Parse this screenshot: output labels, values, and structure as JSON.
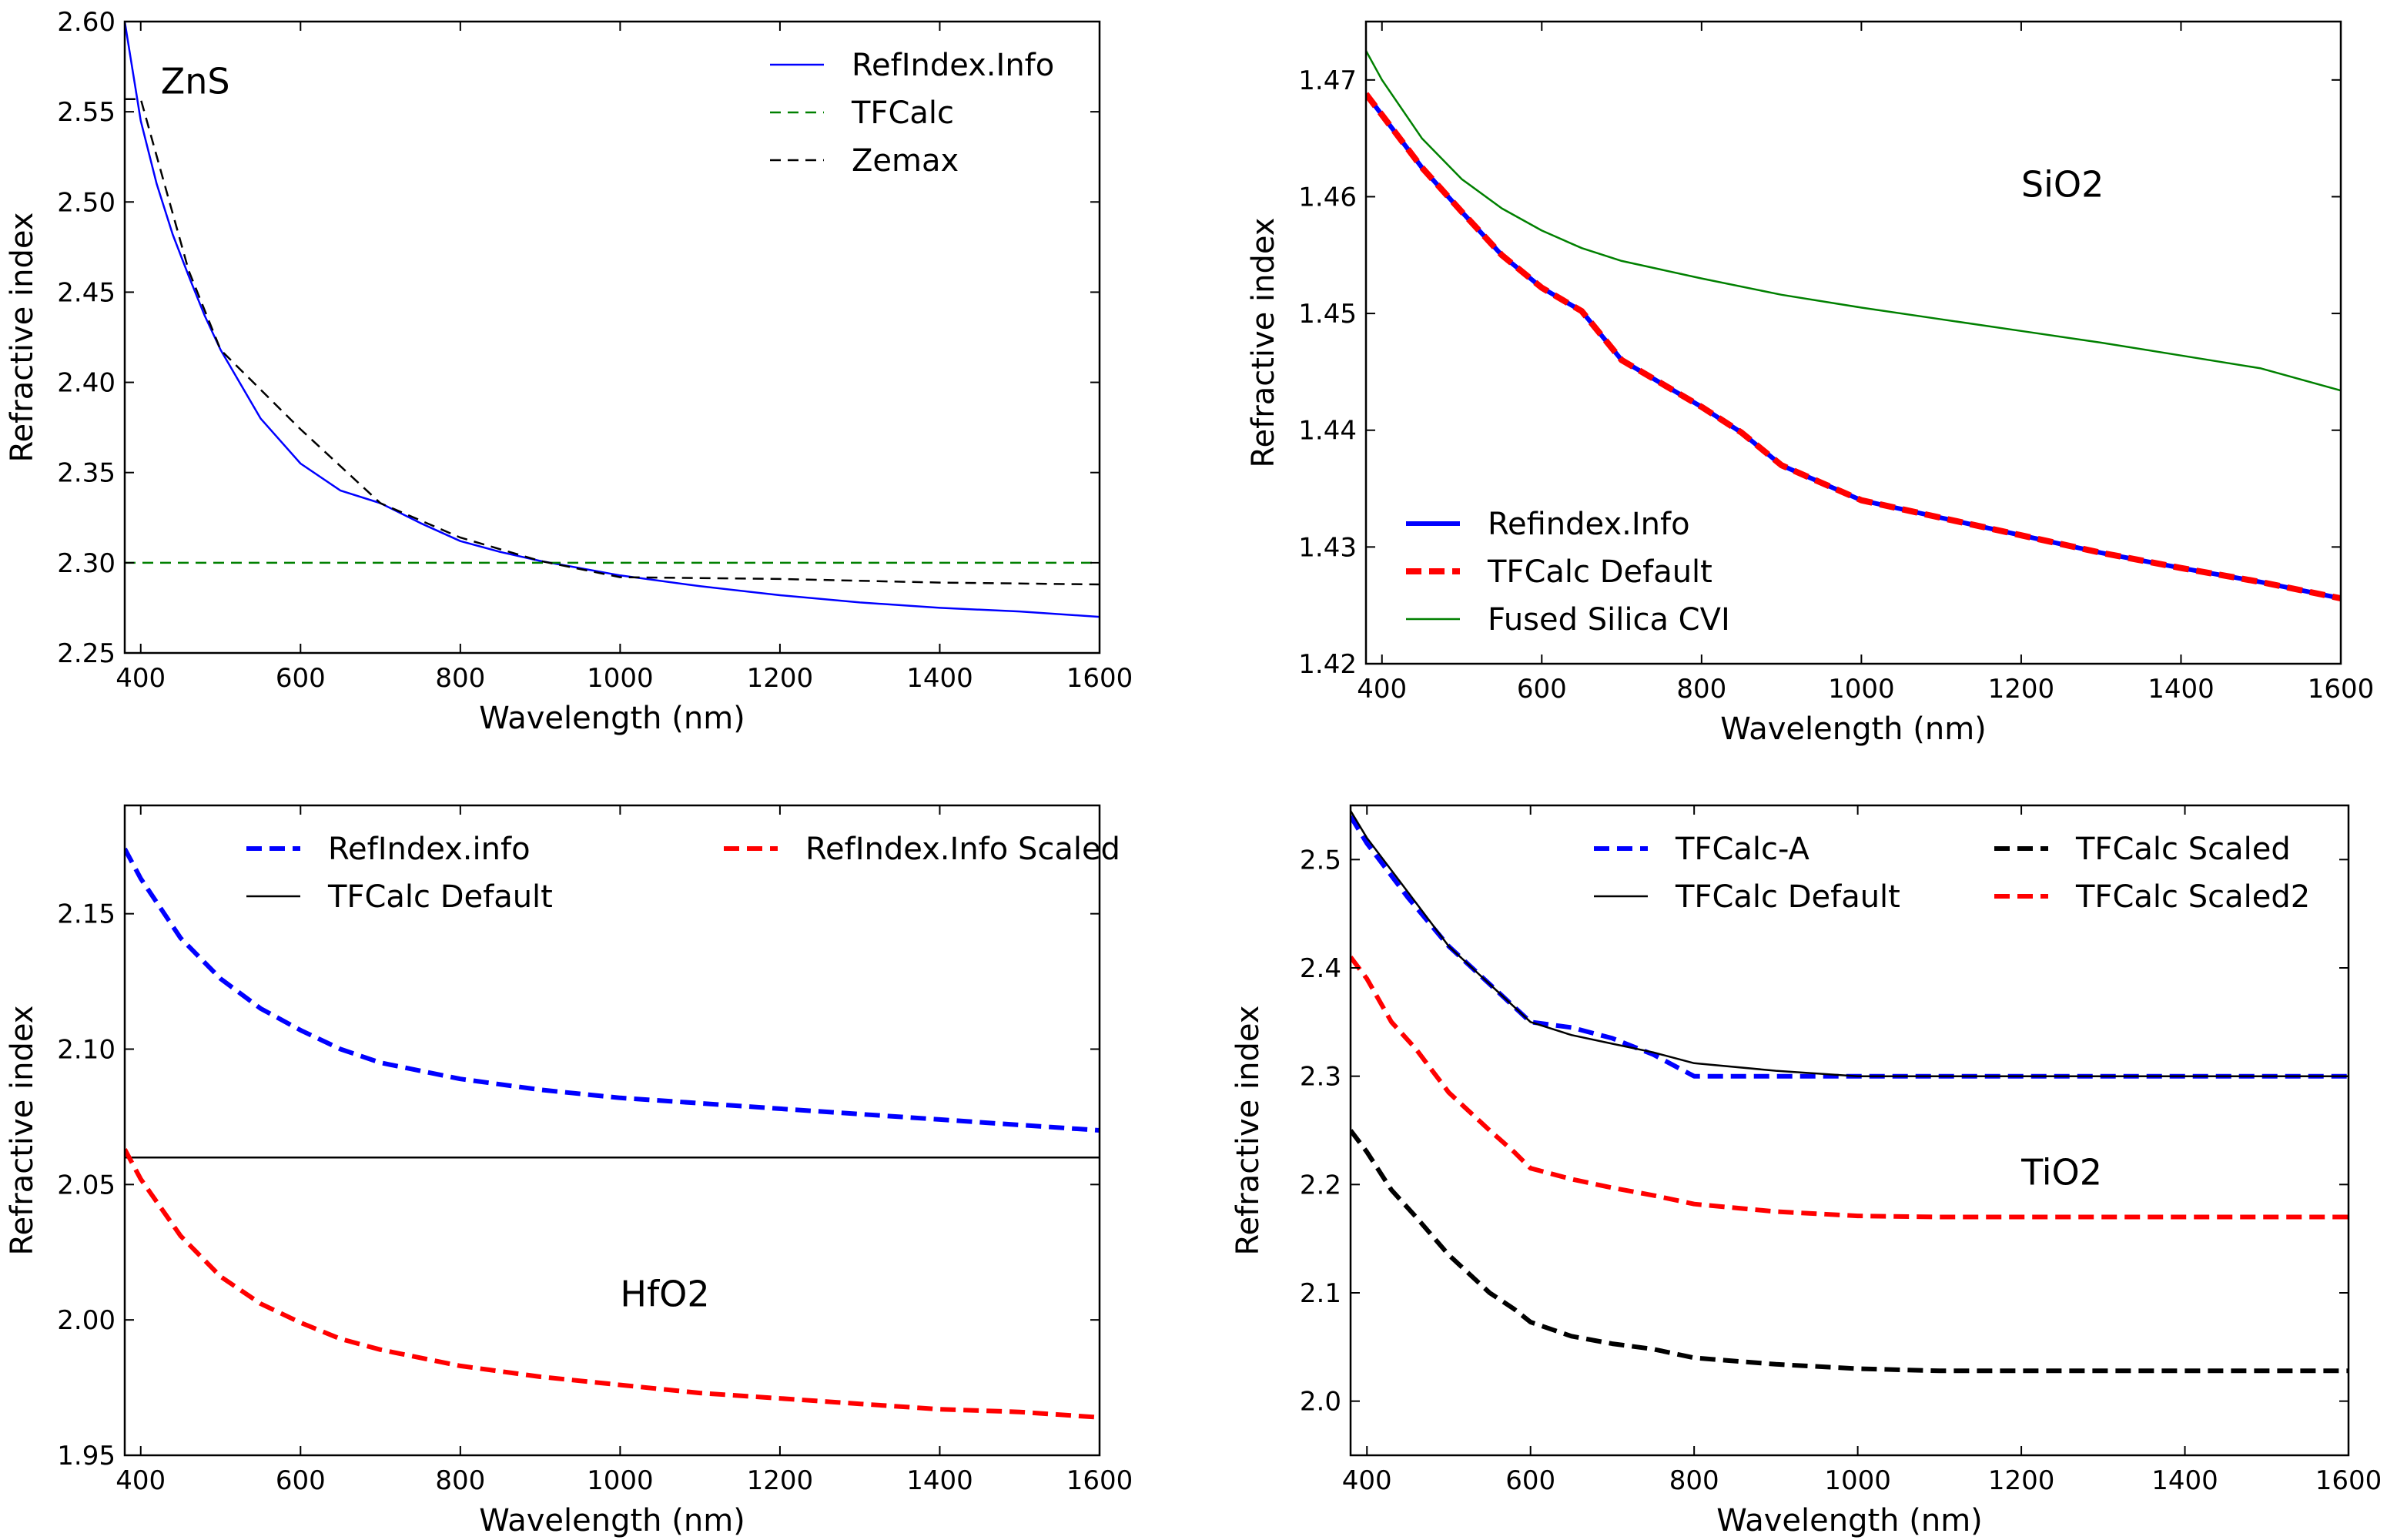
{
  "chart_data": [
    {
      "type": "line",
      "xlabel": "Wavelength (nm)",
      "ylabel": "Refractive index",
      "xlim": [
        380,
        1600
      ],
      "ylim": [
        2.25,
        2.6
      ],
      "xticks": [
        400,
        600,
        800,
        1000,
        1200,
        1400,
        1600
      ],
      "yticks": [
        2.25,
        2.3,
        2.35,
        2.4,
        2.45,
        2.5,
        2.55,
        2.6
      ],
      "ytick_decimals": 2,
      "legend": {
        "placement": "top-right",
        "columns": 1
      },
      "annotations": [
        {
          "text": "ZnS",
          "x": 425,
          "y": 2.56
        }
      ],
      "series": [
        {
          "name": "RefIndex.Info",
          "color": "#0000ff",
          "style": "solid",
          "width": 2.5,
          "x": [
            380,
            400,
            420,
            440,
            460,
            480,
            500,
            550,
            600,
            650,
            700,
            750,
            800,
            850,
            900,
            950,
            1000,
            1100,
            1200,
            1300,
            1400,
            1500,
            1600
          ],
          "y": [
            2.6,
            2.545,
            2.51,
            2.482,
            2.459,
            2.437,
            2.418,
            2.38,
            2.355,
            2.34,
            2.333,
            2.322,
            2.312,
            2.306,
            2.301,
            2.297,
            2.293,
            2.287,
            2.282,
            2.278,
            2.275,
            2.273,
            2.27
          ]
        },
        {
          "name": "TFCalc",
          "color": "#008000",
          "style": "dashed",
          "width": 2.5,
          "x": [
            380,
            1600
          ],
          "y": [
            2.3,
            2.3
          ]
        },
        {
          "name": "Zemax",
          "color": "#000000",
          "style": "dashed",
          "width": 2.5,
          "x": [
            380,
            400,
            460,
            500,
            600,
            700,
            800,
            900,
            1000,
            1200,
            1400,
            1600
          ],
          "y": [
            2.557,
            2.557,
            2.462,
            2.418,
            2.374,
            2.333,
            2.314,
            2.301,
            2.292,
            2.291,
            2.289,
            2.288
          ]
        }
      ]
    },
    {
      "type": "line",
      "xlabel": "Wavelength (nm)",
      "ylabel": "Refractive index",
      "xlim": [
        380,
        1600
      ],
      "ylim": [
        1.42,
        1.475
      ],
      "xticks": [
        400,
        600,
        800,
        1000,
        1200,
        1400,
        1600
      ],
      "yticks": [
        1.42,
        1.43,
        1.44,
        1.45,
        1.46,
        1.47
      ],
      "ytick_decimals": 2,
      "legend": {
        "placement": "lower-left",
        "columns": 1
      },
      "annotations": [
        {
          "text": "SiO2",
          "x": 1200,
          "y": 1.46
        }
      ],
      "series": [
        {
          "name": "Refindex.Info",
          "color": "#0000ff",
          "style": "solid",
          "width": 6,
          "x": [
            380,
            400,
            450,
            500,
            550,
            600,
            650,
            700,
            750,
            800,
            850,
            900,
            950,
            1000,
            1100,
            1200,
            1300,
            1400,
            1500,
            1600
          ],
          "y": [
            1.4688,
            1.467,
            1.4625,
            1.4587,
            1.455,
            1.4522,
            1.4502,
            1.446,
            1.444,
            1.442,
            1.4398,
            1.437,
            1.4355,
            1.434,
            1.4325,
            1.431,
            1.4295,
            1.4282,
            1.427,
            1.4256
          ]
        },
        {
          "name": "TFCalc Default",
          "color": "#ff0000",
          "style": "dashed",
          "width": 8,
          "x": [
            380,
            400,
            450,
            500,
            550,
            600,
            650,
            700,
            750,
            800,
            850,
            900,
            950,
            1000,
            1100,
            1200,
            1300,
            1400,
            1500,
            1600
          ],
          "y": [
            1.4688,
            1.467,
            1.4625,
            1.4587,
            1.455,
            1.4522,
            1.4502,
            1.446,
            1.444,
            1.442,
            1.4398,
            1.437,
            1.4355,
            1.434,
            1.4325,
            1.431,
            1.4295,
            1.4282,
            1.427,
            1.4256
          ]
        },
        {
          "name": "Fused Silica CVI",
          "color": "#008000",
          "style": "solid",
          "width": 2.5,
          "x": [
            380,
            400,
            450,
            500,
            550,
            600,
            650,
            700,
            800,
            900,
            1000,
            1100,
            1200,
            1300,
            1400,
            1500,
            1600
          ],
          "y": [
            1.4725,
            1.47,
            1.465,
            1.4615,
            1.459,
            1.4571,
            1.4556,
            1.4545,
            1.453,
            1.4516,
            1.4505,
            1.4495,
            1.4485,
            1.4475,
            1.4464,
            1.4453,
            1.4434
          ]
        }
      ]
    },
    {
      "type": "line",
      "xlabel": "Wavelength (nm)",
      "ylabel": "Refractive index",
      "xlim": [
        380,
        1600
      ],
      "ylim": [
        1.95,
        2.19
      ],
      "xticks": [
        400,
        600,
        800,
        1000,
        1200,
        1400,
        1600
      ],
      "yticks": [
        1.95,
        2.0,
        2.05,
        2.1,
        2.15
      ],
      "ytick_decimals": 2,
      "legend": {
        "placement": "top-right",
        "columns": 2
      },
      "annotations": [
        {
          "text": "HfO2",
          "x": 1000,
          "y": 2.005
        }
      ],
      "series": [
        {
          "name": "RefIndex.info",
          "color": "#0000ff",
          "style": "dashed",
          "width": 6,
          "x": [
            380,
            400,
            450,
            500,
            550,
            600,
            650,
            700,
            800,
            900,
            1000,
            1100,
            1200,
            1300,
            1400,
            1500,
            1600
          ],
          "y": [
            2.174,
            2.163,
            2.141,
            2.126,
            2.115,
            2.107,
            2.1,
            2.095,
            2.089,
            2.085,
            2.082,
            2.08,
            2.078,
            2.076,
            2.074,
            2.072,
            2.07
          ]
        },
        {
          "name": "TFCalc Default",
          "color": "#000000",
          "style": "solid",
          "width": 2.5,
          "x": [
            380,
            1600
          ],
          "y": [
            2.06,
            2.06
          ]
        },
        {
          "name": "RefIndex.Info Scaled",
          "color": "#ff0000",
          "style": "dashed",
          "width": 6,
          "x": [
            380,
            400,
            450,
            500,
            550,
            600,
            650,
            700,
            800,
            900,
            1000,
            1100,
            1200,
            1300,
            1400,
            1500,
            1600
          ],
          "y": [
            2.063,
            2.052,
            2.031,
            2.016,
            2.006,
            1.999,
            1.993,
            1.989,
            1.983,
            1.979,
            1.976,
            1.973,
            1.971,
            1.969,
            1.967,
            1.966,
            1.964
          ]
        }
      ]
    },
    {
      "type": "line",
      "xlabel": "Wavelength (nm)",
      "ylabel": "Refractive index",
      "xlim": [
        380,
        1600
      ],
      "ylim": [
        1.95,
        2.55
      ],
      "xticks": [
        400,
        600,
        800,
        1000,
        1200,
        1400,
        1600
      ],
      "yticks": [
        2.0,
        2.1,
        2.2,
        2.3,
        2.4,
        2.5
      ],
      "ytick_decimals": 1,
      "legend": {
        "placement": "top-right",
        "columns": 2
      },
      "annotations": [
        {
          "text": "TiO2",
          "x": 1200,
          "y": 2.2
        }
      ],
      "series": [
        {
          "name": "TFCalc-A",
          "color": "#0000ff",
          "style": "dashed",
          "width": 6,
          "x": [
            380,
            400,
            450,
            500,
            550,
            600,
            650,
            700,
            750,
            800,
            850,
            900,
            1000,
            1200,
            1400,
            1600
          ],
          "y": [
            2.54,
            2.515,
            2.465,
            2.42,
            2.385,
            2.35,
            2.345,
            2.335,
            2.32,
            2.3,
            2.3,
            2.3,
            2.3,
            2.3,
            2.3,
            2.3
          ]
        },
        {
          "name": "TFCalc Default",
          "color": "#000000",
          "style": "solid",
          "width": 2.5,
          "x": [
            380,
            400,
            450,
            500,
            550,
            600,
            650,
            700,
            750,
            800,
            900,
            1000,
            1200,
            1400,
            1600
          ],
          "y": [
            2.545,
            2.52,
            2.47,
            2.42,
            2.385,
            2.35,
            2.338,
            2.33,
            2.322,
            2.312,
            2.305,
            2.3,
            2.3,
            2.3,
            2.3
          ]
        },
        {
          "name": "TFCalc Scaled",
          "color": "#000000",
          "style": "dashed",
          "width": 6,
          "x": [
            380,
            400,
            430,
            460,
            500,
            550,
            580,
            600,
            650,
            700,
            750,
            800,
            900,
            1000,
            1100,
            1200,
            1400,
            1600
          ],
          "y": [
            2.25,
            2.23,
            2.195,
            2.17,
            2.135,
            2.1,
            2.085,
            2.073,
            2.06,
            2.053,
            2.048,
            2.04,
            2.034,
            2.03,
            2.028,
            2.028,
            2.028,
            2.028
          ]
        },
        {
          "name": "TFCalc Scaled2",
          "color": "#ff0000",
          "style": "dashed",
          "width": 6,
          "x": [
            380,
            400,
            430,
            460,
            500,
            550,
            580,
            600,
            650,
            700,
            750,
            800,
            900,
            1000,
            1100,
            1200,
            1400,
            1600
          ],
          "y": [
            2.41,
            2.39,
            2.35,
            2.325,
            2.285,
            2.25,
            2.23,
            2.215,
            2.205,
            2.197,
            2.19,
            2.182,
            2.175,
            2.171,
            2.17,
            2.17,
            2.17,
            2.17
          ]
        }
      ]
    }
  ]
}
